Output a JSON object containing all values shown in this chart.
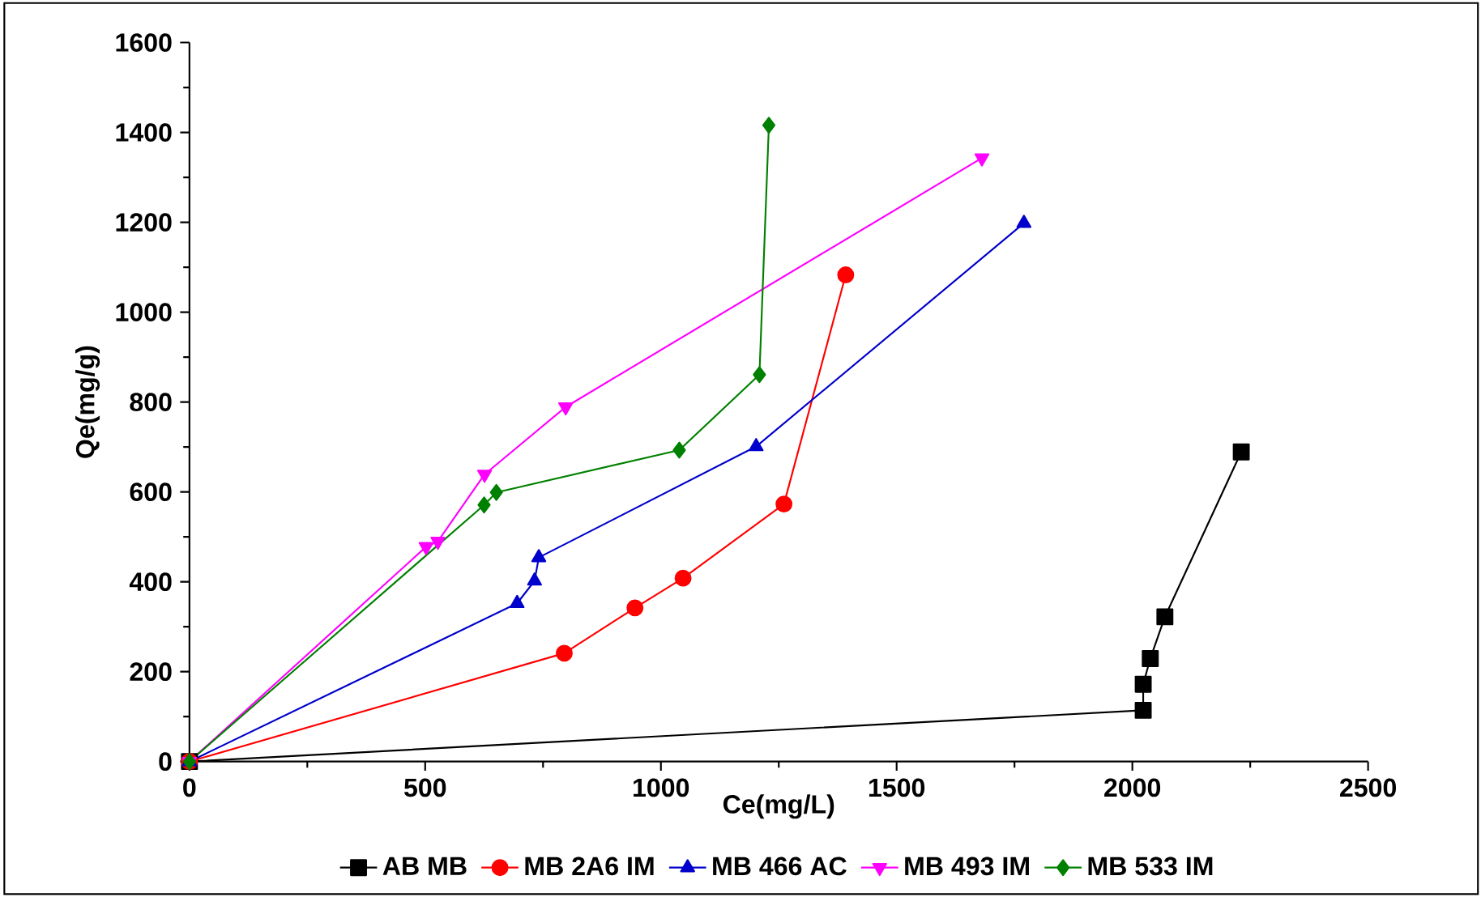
{
  "chart_data": {
    "type": "line",
    "xlabel": "Ce(mg/L)",
    "ylabel": "Qe(mg/g)",
    "xlim": [
      0,
      2500
    ],
    "ylim": [
      0,
      1600
    ],
    "xticks": [
      0,
      500,
      1000,
      1500,
      2000,
      2500
    ],
    "yticks": [
      0,
      200,
      400,
      600,
      800,
      1000,
      1200,
      1400,
      1600
    ],
    "grid": false,
    "legend": "bottom",
    "series": [
      {
        "name": "AB MB",
        "color": "#000000",
        "marker": "square",
        "x": [
          0,
          2023,
          2023,
          2038,
          2069,
          2231
        ],
        "values": [
          0,
          114,
          172,
          229,
          322,
          689
        ]
      },
      {
        "name": "MB 2A6 IM",
        "color": "#ff0000",
        "marker": "circle",
        "x": [
          0,
          795,
          945,
          1047,
          1261,
          1392
        ],
        "values": [
          0,
          241,
          342,
          408,
          573,
          1083
        ]
      },
      {
        "name": "MB 466 AC",
        "color": "#0000cc",
        "marker": "triangle",
        "x": [
          0,
          695,
          732,
          741,
          1202,
          1770
        ],
        "values": [
          0,
          352,
          402,
          454,
          701,
          1198
        ]
      },
      {
        "name": "MB 493 IM",
        "color": "#ff00ff",
        "marker": "triangle down",
        "x": [
          0,
          502,
          527,
          626,
          798,
          1681
        ],
        "values": [
          0,
          478,
          490,
          639,
          789,
          1343
        ]
      },
      {
        "name": "MB 533 IM",
        "color": "#008000",
        "marker": "diamond",
        "x": [
          0,
          625,
          651,
          1039,
          1209,
          1229
        ],
        "values": [
          0,
          571,
          599,
          693,
          861,
          1416
        ]
      }
    ]
  }
}
